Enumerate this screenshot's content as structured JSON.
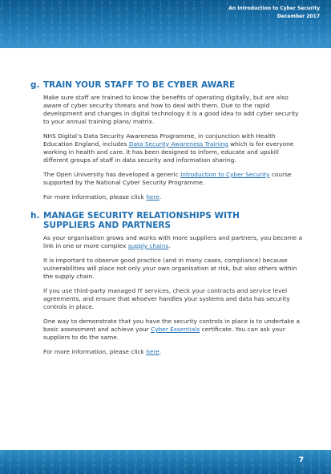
{
  "header": {
    "title": "An Introduction to Cyber Security",
    "date": "December 2017"
  },
  "footer": {
    "page_number": "7"
  },
  "sections": [
    {
      "letter": "g.",
      "heading": "TRAIN YOUR STAFF TO BE CYBER AWARE",
      "p1": "Make sure staff are trained to know the benefits of operating digitally, but are also aware of cyber security threats and how to deal with them. Due to the rapid development and changes in digital technology it is a good idea to add cyber security to your annual training plans/ matrix.",
      "p2_a": "NHS Digital’s Data Security Awareness Programme, in conjunction with Health Education England, includes ",
      "p2_link": "Data Security Awareness Training",
      "p2_b": " which is for everyone working in health and care. It has been designed to inform, educate and upskill different groups of staff in data security and information sharing.",
      "p3_a": "The Open University has developed a generic ",
      "p3_link": "Introduction to Cyber Security",
      "p3_b": " course supported by the National Cyber Security Programme.",
      "p4_a": "For more information, please click ",
      "p4_link": "here",
      "p4_b": "."
    },
    {
      "letter": "h.",
      "heading_line1": "MANAGE SECURITY RELATIONSHIPS WITH",
      "heading_line2": "SUPPLIERS AND PARTNERS",
      "p1_a": "As your organisation grows and works with more suppliers and partners, you become a link in one or more complex ",
      "p1_link": "supply chains",
      "p1_b": ".",
      "p2": "It is important to observe good practice (and in many cases, compliance) because vulnerabilities will place not only your own organisation at risk, but also others within the supply chain.",
      "p3": "If you use third-party managed IT services, check your contracts and service level agreements, and ensure that whoever handles your systems and data has security controls in place.",
      "p4_a": "One way to demonstrate that you have the security controls in place is to undertake a basic assessment and achieve your ",
      "p4_link": "Cyber Essentials",
      "p4_b": " certificate. You can ask your suppliers to do the same.",
      "p5_a": "For more information, please click ",
      "p5_link": "here",
      "p5_b": "."
    }
  ]
}
